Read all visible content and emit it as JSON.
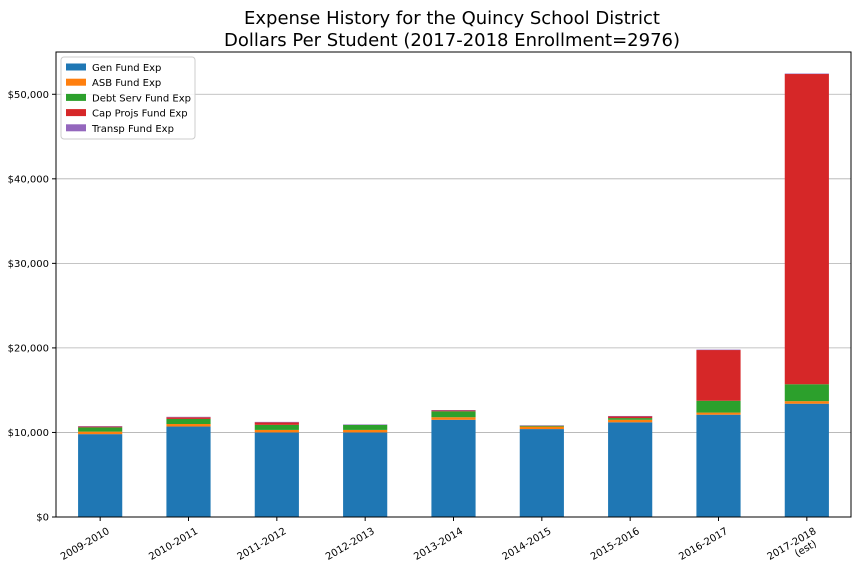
{
  "chart_data": {
    "type": "bar",
    "stacked": true,
    "title": "Expense History for the Quincy School District",
    "subtitle": "Dollars Per Student (2017-2018 Enrollment=2976)",
    "categories": [
      "2009-2010",
      "2010-2011",
      "2011-2012",
      "2012-2013",
      "2013-2014",
      "2014-2015",
      "2015-2016",
      "2016-2017",
      "2017-2018\n(est)"
    ],
    "series": [
      {
        "name": "Gen Fund Exp",
        "color": "#1f77b4",
        "values": [
          9800,
          10700,
          10000,
          10000,
          11500,
          10400,
          11200,
          12100,
          13400
        ]
      },
      {
        "name": "ASB Fund Exp",
        "color": "#ff7f0e",
        "values": [
          300,
          300,
          300,
          300,
          300,
          300,
          300,
          250,
          300
        ]
      },
      {
        "name": "Debt Serv Fund Exp",
        "color": "#2ca02c",
        "values": [
          500,
          600,
          600,
          600,
          700,
          100,
          200,
          1400,
          2000
        ]
      },
      {
        "name": "Cap Projs Fund Exp",
        "color": "#d62728",
        "values": [
          100,
          200,
          300,
          0,
          100,
          0,
          200,
          6000,
          36700
        ]
      },
      {
        "name": "Transp Fund Exp",
        "color": "#9467bd",
        "values": [
          50,
          50,
          50,
          50,
          50,
          50,
          50,
          50,
          50
        ]
      }
    ],
    "y_ticks": [
      0,
      10000,
      20000,
      30000,
      40000,
      50000
    ],
    "y_tick_labels": [
      "$0",
      "$10,000",
      "$20,000",
      "$30,000",
      "$40,000",
      "$50,000"
    ],
    "ylim": [
      0,
      55000
    ],
    "xlabel": "",
    "ylabel": "",
    "grid": "horizontal",
    "legend_position": "top-left"
  }
}
